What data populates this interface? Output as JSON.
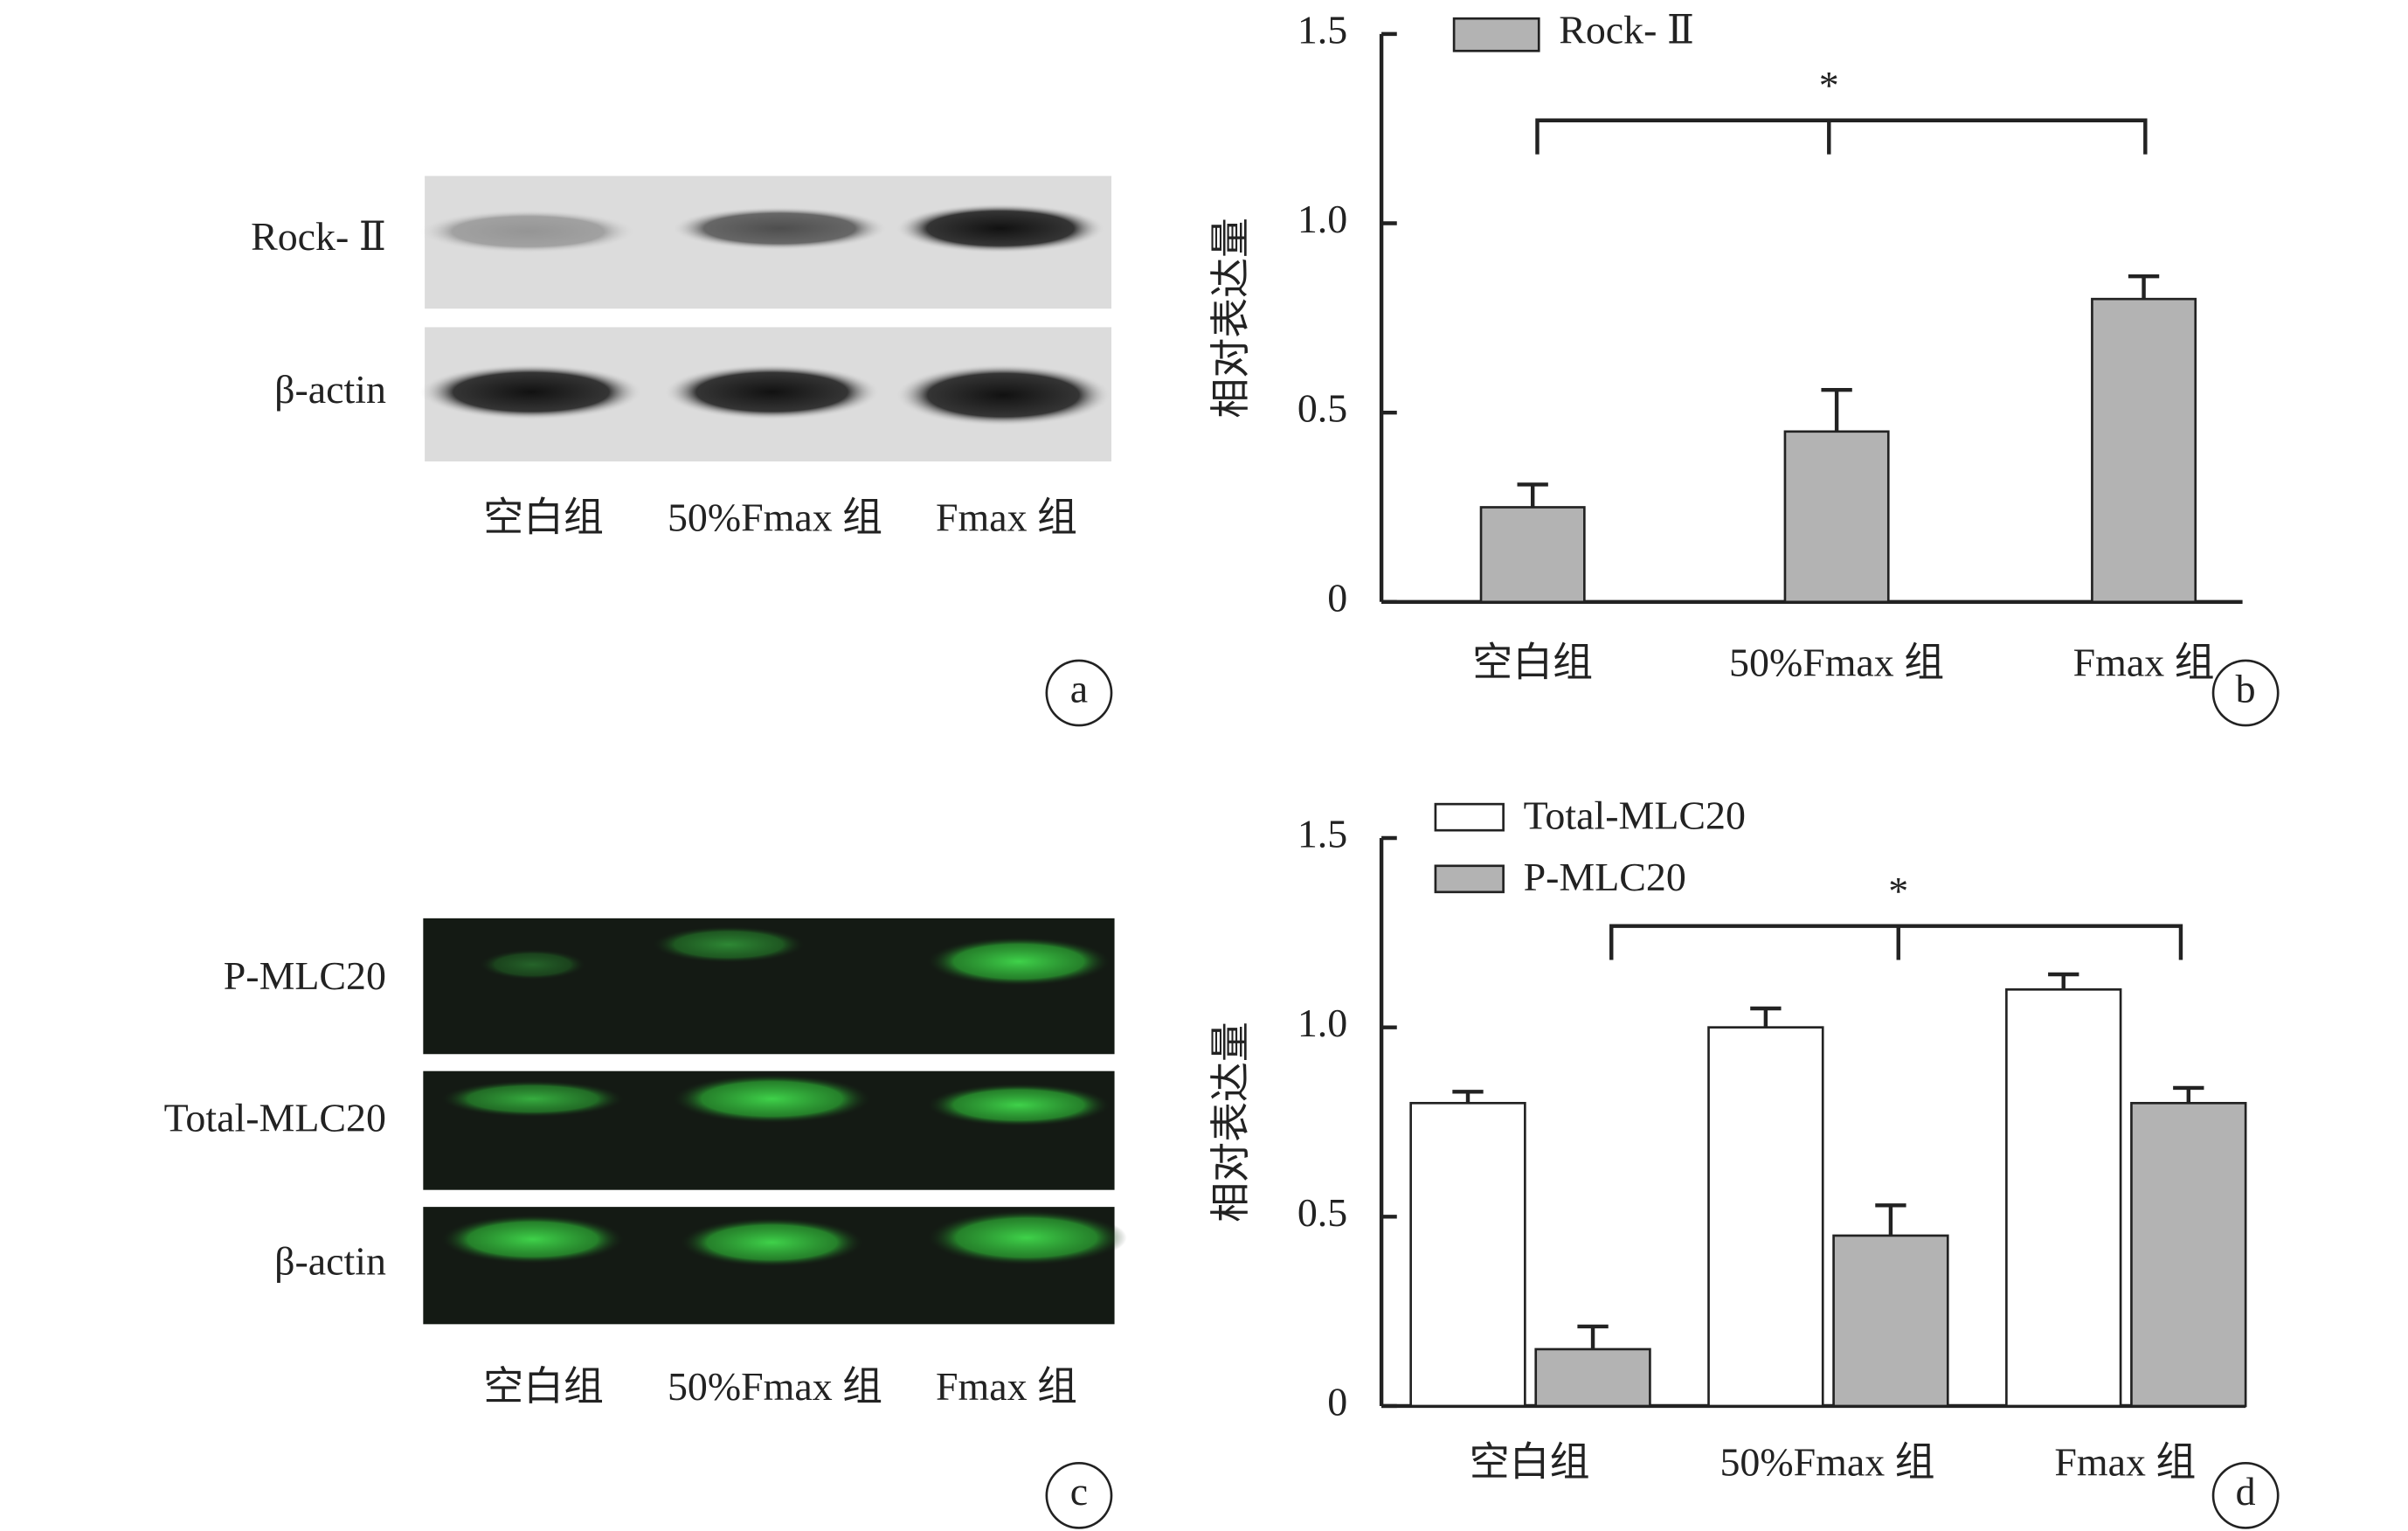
{
  "panel_labels": [
    "a",
    "b",
    "c",
    "d"
  ],
  "blot_a": {
    "rows": [
      "Rock- Ⅱ",
      "β-actin"
    ],
    "lanes": [
      "空白组",
      "50%Fmax 组",
      "Fmax 组"
    ]
  },
  "blot_c": {
    "rows": [
      "P-MLC20",
      "Total-MLC20",
      "β-actin"
    ],
    "lanes": [
      "空白组",
      "50%Fmax 组",
      "Fmax 组"
    ]
  },
  "chart_data": [
    {
      "type": "bar",
      "ylabel": "相对表达量",
      "categories": [
        "空白组",
        "50%Fmax 组",
        "Fmax 组"
      ],
      "series": [
        {
          "name": "Rock- Ⅱ",
          "color": "#b3b3b3",
          "values": [
            0.25,
            0.45,
            0.8
          ],
          "errors": [
            0.06,
            0.11,
            0.06
          ]
        }
      ],
      "ylim": [
        0,
        1.5
      ],
      "yticks": [
        0,
        0.5,
        {
          "value": 1,
          "label": "1.0"
        },
        1.5
      ],
      "legend": "upper left",
      "annotation": "*"
    },
    {
      "type": "bar",
      "ylabel": "相对表达量",
      "categories": [
        "空白组",
        "50%Fmax 组",
        "Fmax 组"
      ],
      "series": [
        {
          "name": "Total-MLC20",
          "color": "#ffffff",
          "values": [
            0.8,
            1.0,
            1.1
          ],
          "errors": [
            0.03,
            0.05,
            0.04
          ]
        },
        {
          "name": "P-MLC20",
          "color": "#b3b3b3",
          "values": [
            0.15,
            0.45,
            0.8
          ],
          "errors": [
            0.06,
            0.08,
            0.04
          ]
        }
      ],
      "ylim": [
        0,
        1.5
      ],
      "yticks": [
        0,
        0.5,
        {
          "value": 1,
          "label": "1.0"
        },
        1.5
      ],
      "legend": "upper left",
      "annotation": "*"
    }
  ]
}
